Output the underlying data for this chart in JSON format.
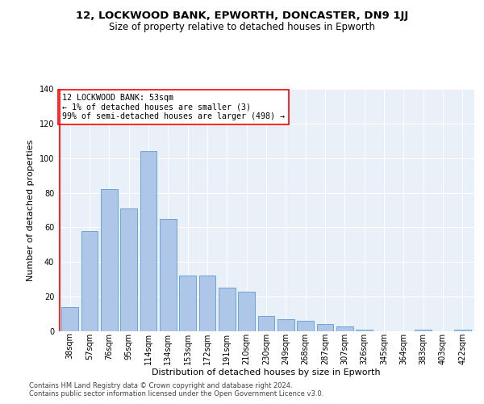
{
  "title1": "12, LOCKWOOD BANK, EPWORTH, DONCASTER, DN9 1JJ",
  "title2": "Size of property relative to detached houses in Epworth",
  "xlabel": "Distribution of detached houses by size in Epworth",
  "ylabel": "Number of detached properties",
  "categories": [
    "38sqm",
    "57sqm",
    "76sqm",
    "95sqm",
    "114sqm",
    "134sqm",
    "153sqm",
    "172sqm",
    "191sqm",
    "210sqm",
    "230sqm",
    "249sqm",
    "268sqm",
    "287sqm",
    "307sqm",
    "326sqm",
    "345sqm",
    "364sqm",
    "383sqm",
    "403sqm",
    "422sqm"
  ],
  "values": [
    14,
    58,
    82,
    71,
    104,
    65,
    32,
    32,
    25,
    23,
    9,
    7,
    6,
    4,
    3,
    1,
    0,
    0,
    1,
    0,
    1
  ],
  "bar_color": "#aec6e8",
  "bar_edge_color": "#5b9bd5",
  "bg_color": "#eaf0f8",
  "annotation_text": "12 LOCKWOOD BANK: 53sqm\n← 1% of detached houses are smaller (3)\n99% of semi-detached houses are larger (498) →",
  "ylim": [
    0,
    140
  ],
  "yticks": [
    0,
    20,
    40,
    60,
    80,
    100,
    120,
    140
  ],
  "footer1": "Contains HM Land Registry data © Crown copyright and database right 2024.",
  "footer2": "Contains public sector information licensed under the Open Government Licence v3.0.",
  "title1_fontsize": 9.5,
  "title2_fontsize": 8.5,
  "xlabel_fontsize": 8.0,
  "ylabel_fontsize": 8.0,
  "tick_fontsize": 7.0,
  "footer_fontsize": 6.0
}
